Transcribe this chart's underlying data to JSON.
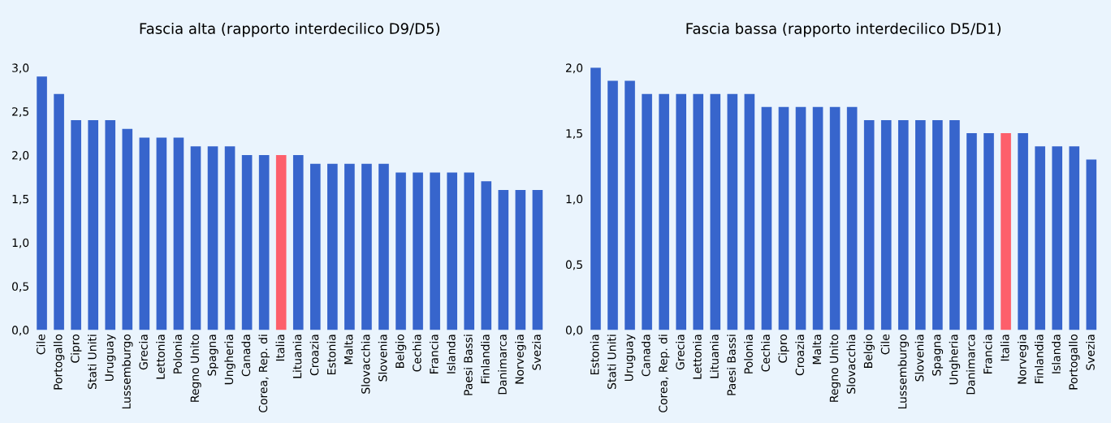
{
  "chart_data": [
    {
      "type": "bar",
      "title": "Fascia alta (rapporto interdecilico D9/D5)",
      "categories": [
        "Cile",
        "Portogallo",
        "Cipro",
        "Stati Uniti",
        "Uruguay",
        "Lussemburgo",
        "Grecia",
        "Lettonia",
        "Polonia",
        "Regno Unito",
        "Spagna",
        "Ungheria",
        "Canada",
        "Corea, Rep. di",
        "Italia",
        "Lituania",
        "Croazia",
        "Estonia",
        "Malta",
        "Slovacchia",
        "Slovenia",
        "Belgio",
        "Cechia",
        "Francia",
        "Islanda",
        "Paesi Bassi",
        "Finlandia",
        "Danimarca",
        "Norvegia",
        "Svezia"
      ],
      "values": [
        2.9,
        2.7,
        2.4,
        2.4,
        2.4,
        2.3,
        2.2,
        2.2,
        2.2,
        2.1,
        2.1,
        2.1,
        2.0,
        2.0,
        2.0,
        2.0,
        1.9,
        1.9,
        1.9,
        1.9,
        1.9,
        1.8,
        1.8,
        1.8,
        1.8,
        1.8,
        1.7,
        1.6,
        1.6,
        1.6
      ],
      "colors": [
        "#3765cc",
        "#3765cc",
        "#3765cc",
        "#3765cc",
        "#3765cc",
        "#3765cc",
        "#3765cc",
        "#3765cc",
        "#3765cc",
        "#3765cc",
        "#3765cc",
        "#3765cc",
        "#3765cc",
        "#3765cc",
        "#fd5f6b",
        "#3765cc",
        "#3765cc",
        "#3765cc",
        "#3765cc",
        "#3765cc",
        "#3765cc",
        "#3765cc",
        "#3765cc",
        "#3765cc",
        "#3765cc",
        "#3765cc",
        "#3765cc",
        "#3765cc",
        "#3765cc",
        "#3765cc"
      ],
      "ylim": [
        0,
        3.0
      ],
      "yticks": [
        {
          "value": 0,
          "label": "0,0"
        },
        {
          "value": 0.5,
          "label": "0,5"
        },
        {
          "value": 1.0,
          "label": "1,0"
        },
        {
          "value": 1.5,
          "label": "1,5"
        },
        {
          "value": 2.0,
          "label": "2,0"
        },
        {
          "value": 2.5,
          "label": "2,5"
        },
        {
          "value": 3.0,
          "label": "3,0"
        }
      ],
      "grid": false
    },
    {
      "type": "bar",
      "title": "Fascia bassa (rapporto interdecilico D5/D1)",
      "categories": [
        "Estonia",
        "Stati Uniti",
        "Uruguay",
        "Canada",
        "Corea, Rep. di",
        "Grecia",
        "Lettonia",
        "Lituania",
        "Paesi Bassi",
        "Polonia",
        "Cechia",
        "Cipro",
        "Croazia",
        "Malta",
        "Regno Unito",
        "Slovacchia",
        "Belgio",
        "Cile",
        "Lussemburgo",
        "Slovenia",
        "Spagna",
        "Ungheria",
        "Danimarca",
        "Francia",
        "Italia",
        "Norvegia",
        "Finlandia",
        "Islanda",
        "Portogallo",
        "Svezia"
      ],
      "values": [
        2.0,
        1.9,
        1.9,
        1.8,
        1.8,
        1.8,
        1.8,
        1.8,
        1.8,
        1.8,
        1.7,
        1.7,
        1.7,
        1.7,
        1.7,
        1.7,
        1.6,
        1.6,
        1.6,
        1.6,
        1.6,
        1.6,
        1.5,
        1.5,
        1.5,
        1.5,
        1.4,
        1.4,
        1.4,
        1.3
      ],
      "colors": [
        "#3765cc",
        "#3765cc",
        "#3765cc",
        "#3765cc",
        "#3765cc",
        "#3765cc",
        "#3765cc",
        "#3765cc",
        "#3765cc",
        "#3765cc",
        "#3765cc",
        "#3765cc",
        "#3765cc",
        "#3765cc",
        "#3765cc",
        "#3765cc",
        "#3765cc",
        "#3765cc",
        "#3765cc",
        "#3765cc",
        "#3765cc",
        "#3765cc",
        "#3765cc",
        "#3765cc",
        "#fd5f6b",
        "#3765cc",
        "#3765cc",
        "#3765cc",
        "#3765cc",
        "#3765cc"
      ],
      "ylim": [
        0,
        2.0
      ],
      "yticks": [
        {
          "value": 0,
          "label": "0,0"
        },
        {
          "value": 0.5,
          "label": "0,5"
        },
        {
          "value": 1.0,
          "label": "1,0"
        },
        {
          "value": 1.5,
          "label": "1,5"
        },
        {
          "value": 2.0,
          "label": "2,0"
        }
      ],
      "grid": false
    }
  ]
}
